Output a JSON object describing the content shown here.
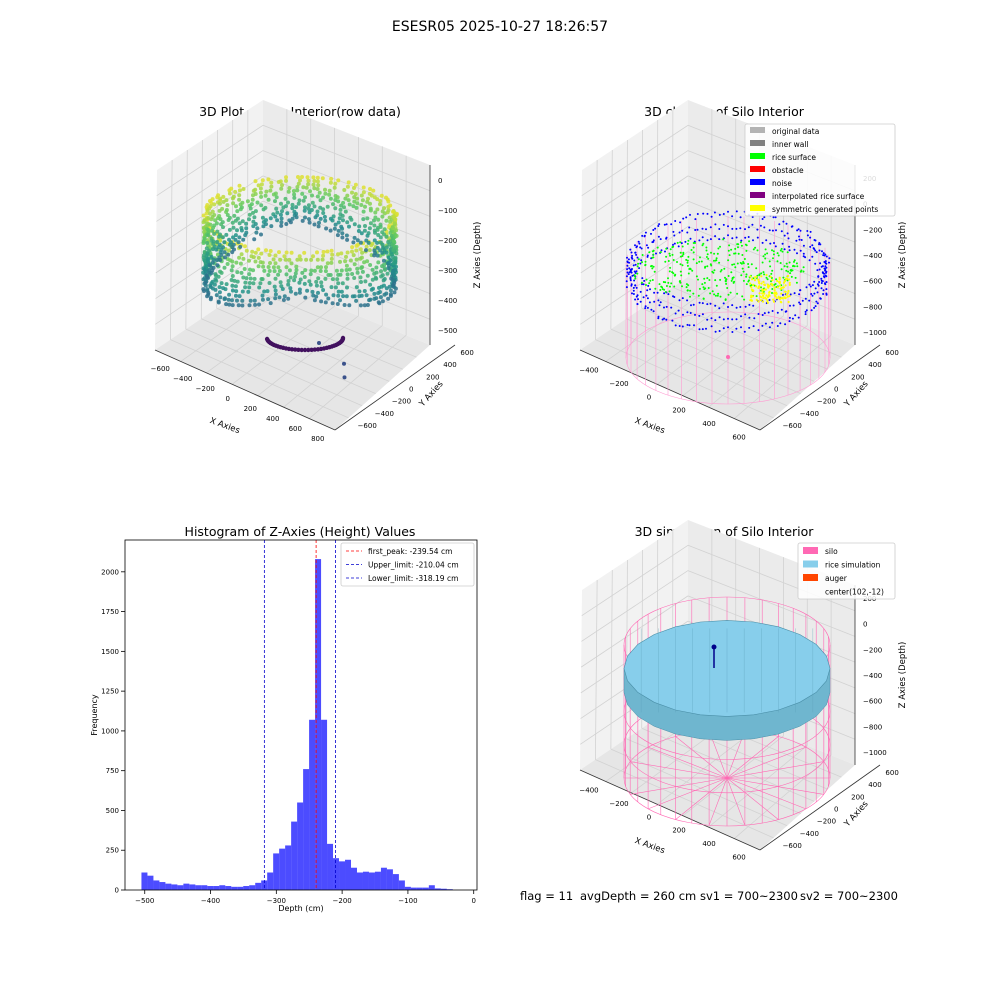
{
  "figure": {
    "suptitle": "ESESR05 2025-10-27 18:26:57",
    "footer": {
      "flag": "flag = 11",
      "avg": "avgDepth = 260 cm",
      "sv1": "sv1 = 700~2300",
      "sv2": "sv2 = 700~2300"
    }
  },
  "chart_data": [
    {
      "type": "scatter",
      "title": "3D Plot of Silo Interior(row data)",
      "xlabel": "X Axies",
      "ylabel": "Y Axies",
      "zlabel": "Z Axies (Depth)",
      "xticks": [
        "−600",
        "−400",
        "−200",
        "0",
        "200",
        "400",
        "600",
        "800"
      ],
      "yticks": [
        "600",
        "400",
        "200",
        "0",
        "−200",
        "−400",
        "−600"
      ],
      "zticks": [
        "0",
        "−100",
        "−200",
        "−300",
        "−400",
        "−500"
      ],
      "xlim": [
        -600,
        800
      ],
      "ylim": [
        -600,
        600
      ],
      "zlim": [
        -500,
        0
      ],
      "colormap": "viridis",
      "ring_radius": 500,
      "ring_top_z": -30,
      "ring_bottom_z": -330,
      "bowl_depth_z": -510,
      "outliers": [
        {
          "x": 400,
          "y": 80,
          "z": -430
        },
        {
          "x": 680,
          "y": 30,
          "z": -560
        },
        {
          "x": 560,
          "y": 260,
          "z": -510
        }
      ]
    },
    {
      "type": "scatter",
      "title": "3D classify of Silo Interior",
      "xlabel": "X Axies",
      "ylabel": "Y Axies",
      "zlabel": "Z Axies (Depth)",
      "xticks": [
        "−400",
        "−200",
        "0",
        "200",
        "400",
        "600"
      ],
      "yticks": [
        "600",
        "400",
        "200",
        "0",
        "−200",
        "−400",
        "−600"
      ],
      "zticks": [
        "200",
        "0",
        "−200",
        "−400",
        "−600",
        "−800",
        "−1000"
      ],
      "zlim": [
        -1000,
        200
      ],
      "legend": [
        {
          "label": "original data",
          "color": "#b3b3b3"
        },
        {
          "label": "inner wall",
          "color": "#808080"
        },
        {
          "label": "rice surface",
          "color": "#00ff00"
        },
        {
          "label": "obstacle",
          "color": "#ff0000"
        },
        {
          "label": "noise",
          "color": "#0000ff"
        },
        {
          "label": "interpolated rice surface",
          "color": "#800080"
        },
        {
          "label": "symmetric generated points",
          "color": "#ffff00"
        }
      ],
      "legend_loc": "upper right"
    },
    {
      "type": "bar",
      "title": "Histogram of Z-Axies (Height) Values",
      "xlabel": "Depth (cm)",
      "ylabel": "Frequency",
      "xlim": [
        -530,
        5
      ],
      "ylim": [
        0,
        2200
      ],
      "xticks": [
        -500,
        -400,
        -300,
        -200,
        -100,
        0
      ],
      "xtick_labels": [
        "−500",
        "−400",
        "−300",
        "−200",
        "−100",
        "0"
      ],
      "yticks": [
        0,
        250,
        500,
        750,
        1000,
        1250,
        1500,
        1750,
        2000
      ],
      "ytick_labels": [
        "0",
        "250",
        "500",
        "750",
        "1000",
        "1250",
        "1500",
        "1750",
        "2000"
      ],
      "bin_start": -505,
      "bin_width": 9.1,
      "values": [
        110,
        90,
        60,
        50,
        40,
        35,
        30,
        40,
        35,
        30,
        30,
        25,
        25,
        30,
        25,
        20,
        20,
        25,
        30,
        45,
        60,
        110,
        230,
        260,
        280,
        430,
        550,
        760,
        1070,
        2080,
        1070,
        290,
        200,
        180,
        190,
        140,
        110,
        115,
        110,
        115,
        140,
        130,
        100,
        60,
        20,
        15,
        15,
        15,
        30,
        10,
        8,
        5
      ],
      "color": "#0000ff",
      "vlines": [
        {
          "label": "first_peak: -239.54 cm",
          "x": -239.54,
          "color": "#ff0000"
        },
        {
          "label": "Upper_limit: -210.04 cm",
          "x": -210.04,
          "color": "#0000cc"
        },
        {
          "label": "Lower_limit: -318.19 cm",
          "x": -318.19,
          "color": "#0000cc"
        }
      ],
      "legend_loc": "upper right"
    },
    {
      "type": "area",
      "title": "3D simulation of Silo Interior",
      "xlabel": "X Axies",
      "ylabel": "Y Axies",
      "zlabel": "Z Axies (Depth)",
      "xticks": [
        "−400",
        "−200",
        "0",
        "200",
        "400",
        "600"
      ],
      "yticks": [
        "600",
        "400",
        "200",
        "0",
        "−200",
        "−400",
        "−600"
      ],
      "zticks": [
        "200",
        "0",
        "−200",
        "−400",
        "−600",
        "−800",
        "−1000"
      ],
      "zlim": [
        -1000,
        200
      ],
      "legend": [
        {
          "label": "silo",
          "color": "#ff69b4"
        },
        {
          "label": "rice simulation",
          "color": "#87ceeb"
        },
        {
          "label": "auger",
          "color": "#ff4500"
        },
        {
          "label": "center(102,-12)",
          "color": ""
        }
      ],
      "legend_loc": "upper right",
      "rice_depth": -260
    }
  ]
}
